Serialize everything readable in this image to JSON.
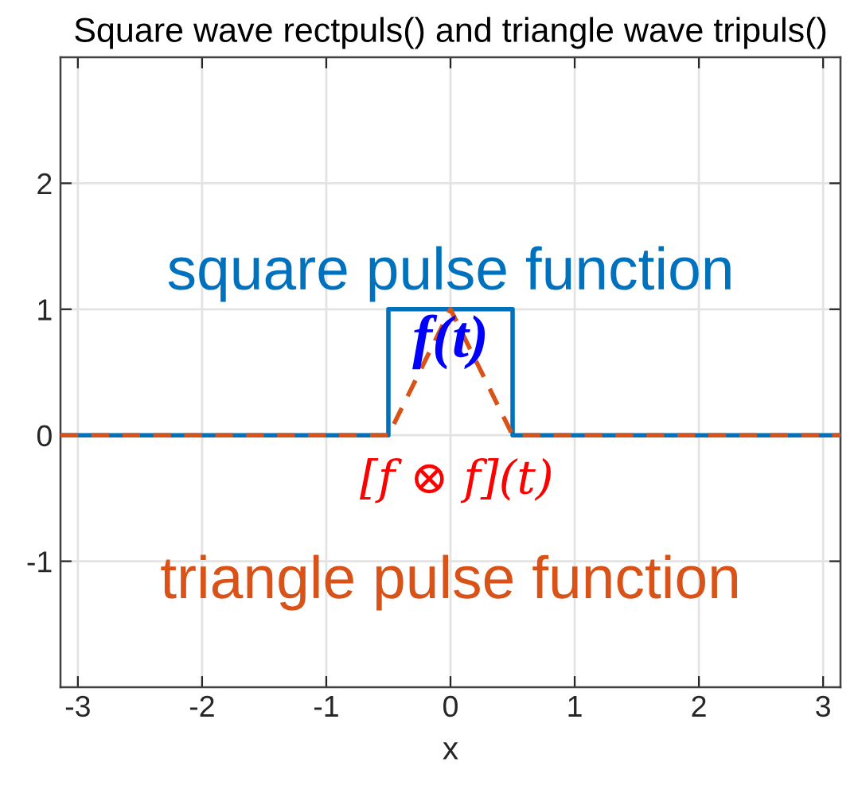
{
  "chart_data": {
    "type": "line",
    "title": "Square wave rectpuls() and triangle wave tripuls()",
    "xlabel": "x",
    "xlim": [
      -3.14,
      3.14
    ],
    "xticks": [
      -3,
      -2,
      -1,
      0,
      1,
      2,
      3
    ],
    "ylim": [
      -2,
      3
    ],
    "yticks": [
      -1,
      0,
      1,
      2
    ],
    "grid": true,
    "series": [
      {
        "x": [
          -3.14,
          -0.5,
          -0.5,
          0.5,
          0.5,
          3.14
        ],
        "values": [
          0,
          0,
          1,
          1,
          0,
          0
        ],
        "color": "#0072bd",
        "line_style": "solid"
      },
      {
        "x": [
          -3.14,
          -0.5,
          0,
          0.5,
          3.14
        ],
        "values": [
          0,
          0,
          1,
          0,
          0
        ],
        "color": "#d95319",
        "line_style": "dashed"
      }
    ],
    "annotations": [
      "square pulse function",
      "f(t)",
      "[f ⊗ f](t)",
      "triangle pulse function"
    ]
  }
}
